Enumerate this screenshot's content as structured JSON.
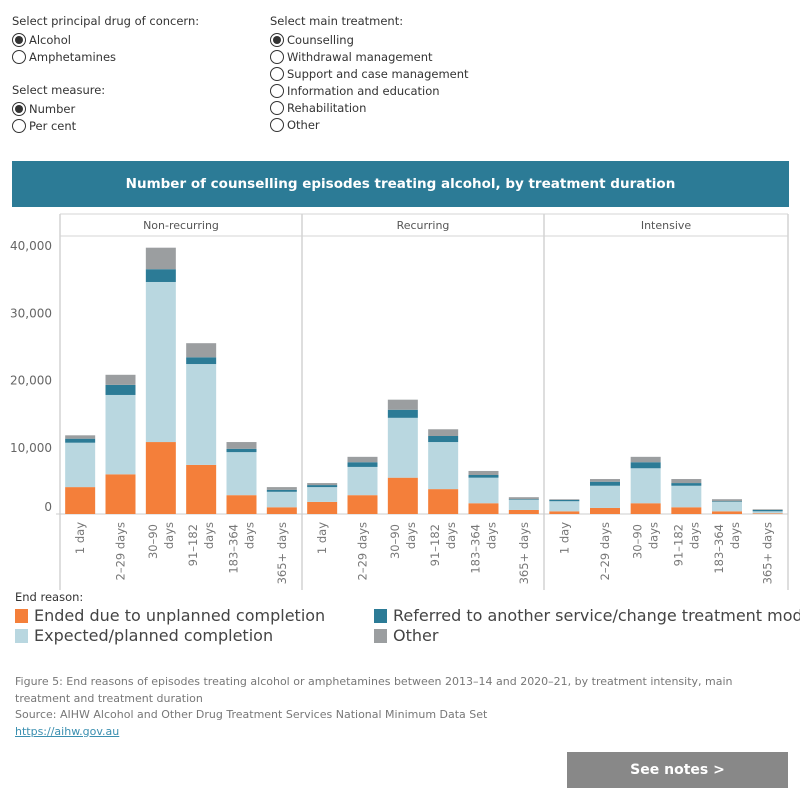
{
  "controls": {
    "drug": {
      "label": "Select principal drug of concern:",
      "options": [
        "Alcohol",
        "Amphetamines"
      ],
      "selected": "Alcohol"
    },
    "measure": {
      "label": "Select measure:",
      "options": [
        "Number",
        "Per cent"
      ],
      "selected": "Number"
    },
    "treatment": {
      "label": "Select main treatment:",
      "options": [
        "Counselling",
        "Withdrawal management",
        "Support and case management",
        "Information and education",
        "Rehabilitation",
        "Other"
      ],
      "selected": "Counselling"
    }
  },
  "banner_title": "Number of counselling episodes treating alcohol, by treatment duration",
  "chart_data": {
    "type": "bar",
    "stacked": true,
    "title": "Number of counselling episodes treating alcohol, by treatment duration",
    "panels": [
      "Non-recurring",
      "Recurring",
      "Intensive"
    ],
    "categories": [
      "1 day",
      "2–29 days",
      "30–90 days",
      "91–182 days",
      "183–364 days",
      "365+ days"
    ],
    "y_ticks": [
      "0",
      "10,000",
      "20,000",
      "30,000",
      "40,000"
    ],
    "ylim": [
      0,
      41000
    ],
    "grid": false,
    "series": [
      {
        "name": "Ended due to unplanned completion",
        "color": "#F47F3A",
        "values": [
          [
            4000,
            5900,
            10700,
            7300,
            2800,
            1000
          ],
          [
            1800,
            2800,
            5400,
            3700,
            1600,
            600
          ],
          [
            400,
            900,
            1600,
            1000,
            400,
            100
          ]
        ]
      },
      {
        "name": "Expected/planned completion",
        "color": "#B9D7E0",
        "values": [
          [
            6600,
            11800,
            23800,
            15000,
            6400,
            2300
          ],
          [
            2200,
            4200,
            8900,
            7000,
            3800,
            1500
          ],
          [
            1500,
            3300,
            5200,
            3200,
            1400,
            300
          ]
        ]
      },
      {
        "name": "Referred to another service/change treatment mode",
        "color": "#2C7B96",
        "values": [
          [
            600,
            1500,
            1900,
            1000,
            500,
            300
          ],
          [
            300,
            700,
            1200,
            900,
            400,
            100
          ],
          [
            200,
            600,
            900,
            400,
            100,
            200
          ]
        ]
      },
      {
        "name": "Other",
        "color": "#9B9EA0",
        "values": [
          [
            500,
            1500,
            3200,
            2100,
            1000,
            400
          ],
          [
            300,
            800,
            1500,
            1000,
            600,
            300
          ],
          [
            100,
            400,
            800,
            600,
            300,
            100
          ]
        ]
      }
    ]
  },
  "legend": {
    "title": "End reason:",
    "items": [
      {
        "label": "Ended due to unplanned completion",
        "color": "#F47F3A"
      },
      {
        "label": "Referred to another service/change treatment mode",
        "color": "#2C7B96"
      },
      {
        "label": "Expected/planned completion",
        "color": "#B9D7E0"
      },
      {
        "label": "Other",
        "color": "#9B9EA0"
      }
    ]
  },
  "caption": {
    "figure": "Figure 5: End reasons of episodes treating alcohol or amphetamines between 2013–14 and 2020–21, by treatment intensity, main treatment and treatment duration",
    "source": "Source: AIHW Alcohol and Other Drug Treatment Services National Minimum Data Set",
    "link": "https://aihw.gov.au"
  },
  "notes_button": "See notes >"
}
